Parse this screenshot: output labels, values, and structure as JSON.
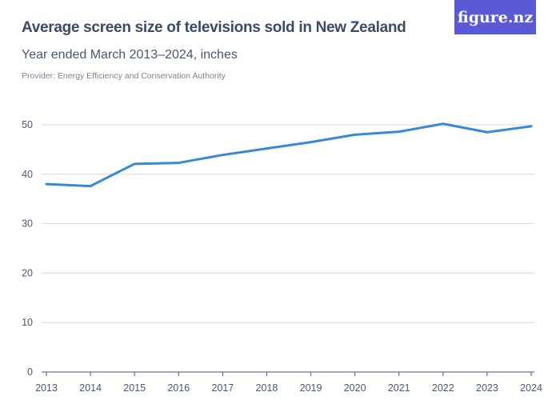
{
  "logo": "figure.nz",
  "chart_data": {
    "type": "line",
    "title": "Average screen size of televisions sold in New Zealand",
    "subtitle": "Year ended March 2013–2024, inches",
    "provider": "Provider: Energy Efficiency and Conservation Authority",
    "categories": [
      "2013",
      "2014",
      "2015",
      "2016",
      "2017",
      "2018",
      "2019",
      "2020",
      "2021",
      "2022",
      "2023",
      "2024"
    ],
    "values": [
      38.0,
      37.6,
      42.1,
      42.3,
      43.9,
      45.2,
      46.5,
      48.0,
      48.6,
      50.2,
      48.5,
      49.7
    ],
    "ylim": [
      0,
      50
    ],
    "yticks": [
      "0",
      "10",
      "20",
      "30",
      "40",
      "50"
    ],
    "grid": true,
    "color": "#3a87d4"
  }
}
